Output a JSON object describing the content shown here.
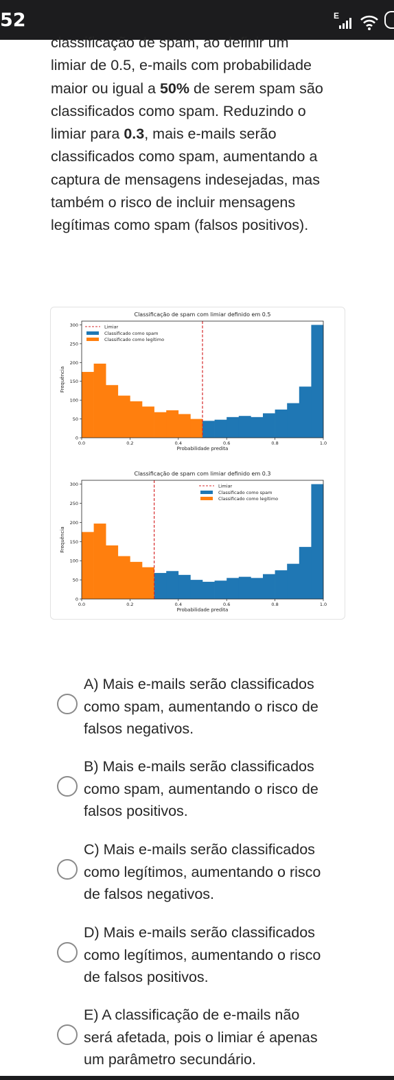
{
  "status_bar": {
    "time": "52",
    "network_label": "E",
    "icons": [
      "signal-icon",
      "wifi-icon",
      "battery-icon"
    ]
  },
  "question": {
    "explanation_lines": [
      "classificação de spam, ao definir um",
      "limiar de 0.5, e-mails com probabilidade",
      "maior ou igual a 50% de serem spam são",
      "classificados como spam. Reduzindo o",
      "limiar para 0.3, mais e-mails serão",
      "classificados como spam, aumentando a",
      "captura de mensagens indesejadas, mas",
      "também o risco de incluir mensagens",
      "legítimas como spam (falsos positivos)."
    ],
    "line_parts": {
      "l3_pre": "maior ou igual a ",
      "l3_bold": "50%",
      "l3_post": " de serem spam são",
      "l5_pre": "limiar para ",
      "l5_bold": "0.3",
      "l5_post": ", mais e-mails serão"
    }
  },
  "colors": {
    "spam": "#1f77b4",
    "legit": "#ff7f0e",
    "threshold": "#d62728"
  },
  "chart_data": [
    {
      "type": "bar",
      "title": "Classificação de spam com limiar definido em 0.5",
      "xlabel": "Probabilidade predita",
      "ylabel": "Frequência",
      "threshold": 0.5,
      "bin_edges": [
        0.0,
        0.05,
        0.1,
        0.15,
        0.2,
        0.25,
        0.3,
        0.35,
        0.4,
        0.45,
        0.5,
        0.55,
        0.6,
        0.65,
        0.7,
        0.75,
        0.8,
        0.85,
        0.9,
        0.95,
        1.0
      ],
      "values": [
        175,
        197,
        140,
        112,
        97,
        83,
        68,
        73,
        63,
        50,
        45,
        48,
        55,
        58,
        55,
        65,
        75,
        92,
        136,
        300
      ],
      "series": [
        {
          "name": "Classificado como spam",
          "color": "#1f77b4"
        },
        {
          "name": "Classificado como legítimo",
          "color": "#ff7f0e"
        }
      ],
      "legend_threshold": "Limiar",
      "ylim": [
        0,
        310
      ],
      "xlim": [
        0,
        1
      ],
      "yticks": [
        0,
        50,
        100,
        150,
        200,
        250,
        300
      ],
      "xticks": [
        0.0,
        0.2,
        0.4,
        0.6,
        0.8,
        1.0
      ],
      "xtick_labels": [
        "0.0",
        "0.2",
        "0.4",
        "0.6",
        "0.8",
        "1.0"
      ],
      "legend": "top-left"
    },
    {
      "type": "bar",
      "title": "Classificação de spam com limiar definido em 0.3",
      "xlabel": "Probabilidade predita",
      "ylabel": "Frequência",
      "threshold": 0.3,
      "bin_edges": [
        0.0,
        0.05,
        0.1,
        0.15,
        0.2,
        0.25,
        0.3,
        0.35,
        0.4,
        0.45,
        0.5,
        0.55,
        0.6,
        0.65,
        0.7,
        0.75,
        0.8,
        0.85,
        0.9,
        0.95,
        1.0
      ],
      "values": [
        175,
        197,
        140,
        112,
        97,
        83,
        68,
        73,
        63,
        50,
        45,
        48,
        55,
        58,
        55,
        65,
        75,
        92,
        136,
        300
      ],
      "series": [
        {
          "name": "Classificado como spam",
          "color": "#1f77b4"
        },
        {
          "name": "Classificado como legítimo",
          "color": "#ff7f0e"
        }
      ],
      "legend_threshold": "Limiar",
      "ylim": [
        0,
        310
      ],
      "xlim": [
        0,
        1
      ],
      "yticks": [
        0,
        50,
        100,
        150,
        200,
        250,
        300
      ],
      "xticks": [
        0.0,
        0.2,
        0.4,
        0.6,
        0.8,
        1.0
      ],
      "xtick_labels": [
        "0.0",
        "0.2",
        "0.4",
        "0.6",
        "0.8",
        "1.0"
      ],
      "legend": "top-center"
    }
  ],
  "options": [
    {
      "lines": [
        "A) Mais e-mails serão classificados",
        "como spam, aumentando o risco de",
        "falsos negativos."
      ]
    },
    {
      "lines": [
        "B) Mais e-mails serão classificados",
        "como spam, aumentando o risco de",
        "falsos positivos."
      ]
    },
    {
      "lines": [
        "C) Mais e-mails serão classificados",
        "como legítimos, aumentando o risco",
        "de falsos negativos."
      ]
    },
    {
      "lines": [
        "D) Mais e-mails serão classificados",
        "como legítimos, aumentando o risco",
        "de falsos positivos."
      ]
    },
    {
      "lines": [
        "E) A classificação de e-mails não",
        "será afetada, pois o limiar é apenas",
        "um parâmetro secundário."
      ]
    }
  ]
}
